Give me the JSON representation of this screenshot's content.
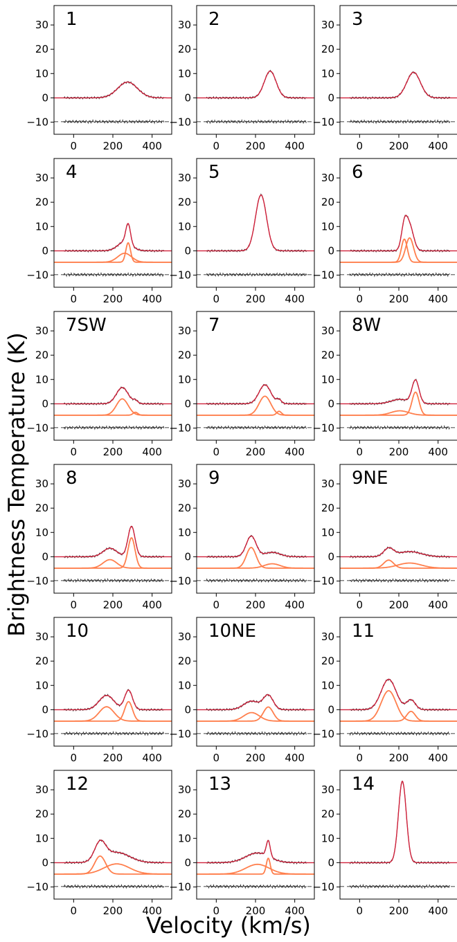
{
  "figure": {
    "ylabel": "Brightness Temperature (K)",
    "xlabel": "Velocity (km/s)"
  },
  "colors": {
    "data": "#333333",
    "fit": "#d0203a",
    "component": "#ff7f4d",
    "residual_ref": "#808080"
  },
  "chart_data": {
    "type": "line",
    "grid": false,
    "xlim": [
      -100,
      500
    ],
    "ylim": [
      -15,
      38
    ],
    "xticks": [
      0,
      200,
      400
    ],
    "yticks": [
      -10,
      0,
      10,
      20,
      30
    ],
    "component_offset": -4.7,
    "residual_offset": -9.8,
    "panels": [
      {
        "label": "1",
        "components": [
          {
            "amp": 6.5,
            "center": 275,
            "sigma": 50
          }
        ]
      },
      {
        "label": "2",
        "components": [
          {
            "amp": 11.0,
            "center": 275,
            "sigma": 30
          }
        ]
      },
      {
        "label": "3",
        "components": [
          {
            "amp": 10.5,
            "center": 275,
            "sigma": 35
          }
        ]
      },
      {
        "label": "4",
        "components": [
          {
            "amp": 8.0,
            "center": 278,
            "sigma": 12
          },
          {
            "amp": 3.7,
            "center": 260,
            "sigma": 35
          }
        ]
      },
      {
        "label": "5",
        "components": [
          {
            "amp": 23.0,
            "center": 228,
            "sigma": 28
          }
        ]
      },
      {
        "label": "6",
        "components": [
          {
            "amp": 9.5,
            "center": 228,
            "sigma": 15
          },
          {
            "amp": 10.0,
            "center": 255,
            "sigma": 20
          }
        ]
      },
      {
        "label": "7SW",
        "components": [
          {
            "amp": 6.7,
            "center": 248,
            "sigma": 30
          },
          {
            "amp": 1.2,
            "center": 315,
            "sigma": 12
          }
        ]
      },
      {
        "label": "7",
        "components": [
          {
            "amp": 7.8,
            "center": 248,
            "sigma": 30
          },
          {
            "amp": 1.6,
            "center": 320,
            "sigma": 12
          }
        ]
      },
      {
        "label": "8W",
        "components": [
          {
            "amp": 1.8,
            "center": 205,
            "sigma": 45
          },
          {
            "amp": 9.5,
            "center": 285,
            "sigma": 18
          }
        ]
      },
      {
        "label": "8",
        "components": [
          {
            "amp": 3.5,
            "center": 185,
            "sigma": 35
          },
          {
            "amp": 12.5,
            "center": 295,
            "sigma": 18
          }
        ]
      },
      {
        "label": "9",
        "components": [
          {
            "amp": 8.5,
            "center": 178,
            "sigma": 25
          },
          {
            "amp": 1.8,
            "center": 285,
            "sigma": 40
          }
        ]
      },
      {
        "label": "9NE",
        "components": [
          {
            "amp": 3.3,
            "center": 148,
            "sigma": 25
          },
          {
            "amp": 2.1,
            "center": 255,
            "sigma": 60
          }
        ]
      },
      {
        "label": "10",
        "components": [
          {
            "amp": 5.9,
            "center": 168,
            "sigma": 38
          },
          {
            "amp": 8.0,
            "center": 280,
            "sigma": 20
          }
        ]
      },
      {
        "label": "10NE",
        "components": [
          {
            "amp": 3.5,
            "center": 180,
            "sigma": 40
          },
          {
            "amp": 5.8,
            "center": 265,
            "sigma": 25
          }
        ]
      },
      {
        "label": "11",
        "components": [
          {
            "amp": 12.5,
            "center": 148,
            "sigma": 38
          },
          {
            "amp": 4.0,
            "center": 262,
            "sigma": 22
          }
        ]
      },
      {
        "label": "12",
        "components": [
          {
            "amp": 7.4,
            "center": 135,
            "sigma": 28
          },
          {
            "amp": 4.2,
            "center": 220,
            "sigma": 65
          }
        ]
      },
      {
        "label": "13",
        "components": [
          {
            "amp": 4.0,
            "center": 210,
            "sigma": 60
          },
          {
            "amp": 6.5,
            "center": 265,
            "sigma": 10
          }
        ]
      },
      {
        "label": "14",
        "components": [
          {
            "amp": 33.5,
            "center": 218,
            "sigma": 20
          }
        ]
      }
    ]
  }
}
